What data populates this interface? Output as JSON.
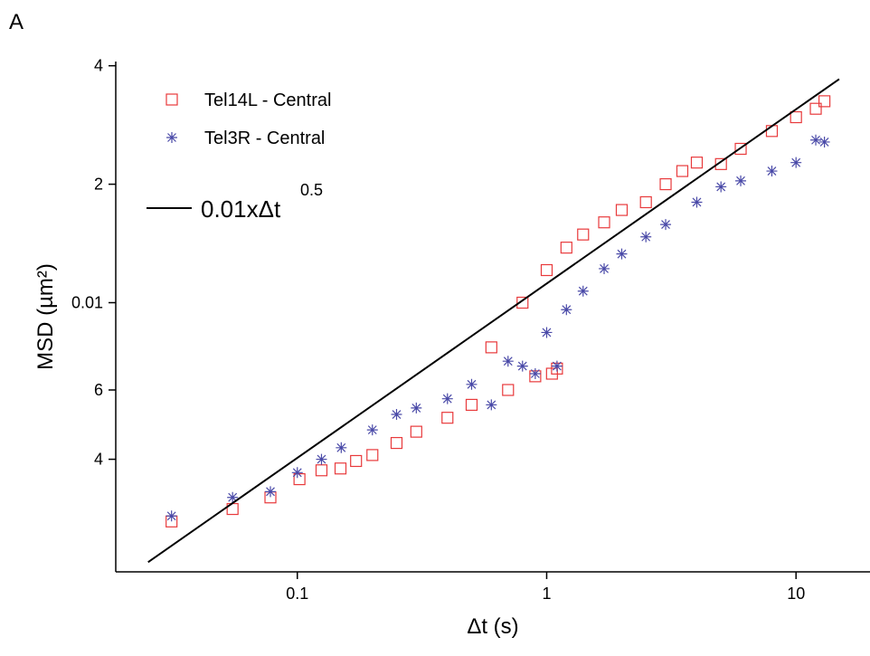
{
  "chart_data": {
    "type": "scatter",
    "panel_label": "A",
    "xlabel": "Δt (s)",
    "ylabel": "MSD (µm²)",
    "xscale": "log",
    "yscale": "log",
    "xlim": [
      0.0187,
      19.8
    ],
    "ylim": [
      0.00207,
      0.041
    ],
    "xticks": [
      0.1,
      1,
      10
    ],
    "yticks": [
      {
        "value": 0.04,
        "label": "4"
      },
      {
        "value": 0.02,
        "label": "2"
      },
      0.01,
      {
        "value": 0.006,
        "label": "6"
      },
      {
        "value": 0.004,
        "label": "4"
      }
    ],
    "legend": "upper left",
    "series": [
      {
        "name": "Tel14L - Central",
        "color": "#e8393b",
        "marker": "square",
        "x": [
          0.0313,
          0.055,
          0.078,
          0.102,
          0.125,
          0.149,
          0.172,
          0.2,
          0.25,
          0.3,
          0.4,
          0.5,
          0.6,
          0.7,
          0.8,
          0.9,
          1.0,
          1.05,
          1.1,
          1.2,
          1.4,
          1.7,
          2.0,
          2.5,
          3,
          3.5,
          4,
          5,
          6,
          8,
          10,
          12,
          13
        ],
        "values": [
          0.00278,
          0.00299,
          0.0032,
          0.00356,
          0.00375,
          0.00379,
          0.00396,
          0.0041,
          0.0044,
          0.0047,
          0.0051,
          0.0055,
          0.0077,
          0.006,
          0.01,
          0.0065,
          0.0121,
          0.0066,
          0.0068,
          0.0138,
          0.0149,
          0.016,
          0.0172,
          0.018,
          0.02,
          0.0216,
          0.0227,
          0.0225,
          0.0246,
          0.0273,
          0.0296,
          0.0311,
          0.0325
        ]
      },
      {
        "name": "Tel3R - Central",
        "color": "#4a4aa8",
        "marker": "asterisk",
        "x": [
          0.0313,
          0.055,
          0.078,
          0.1,
          0.125,
          0.15,
          0.2,
          0.25,
          0.3,
          0.4,
          0.5,
          0.6,
          0.7,
          0.8,
          0.9,
          1.0,
          1.1,
          1.2,
          1.4,
          1.7,
          2,
          2.5,
          3,
          4,
          5,
          6,
          8,
          10,
          12,
          13
        ],
        "values": [
          0.00287,
          0.0032,
          0.00331,
          0.0037,
          0.004,
          0.00428,
          0.00475,
          0.0052,
          0.0054,
          0.0057,
          0.0062,
          0.0055,
          0.0071,
          0.0069,
          0.0066,
          0.0084,
          0.0069,
          0.0096,
          0.0107,
          0.0122,
          0.0133,
          0.0147,
          0.0158,
          0.018,
          0.0197,
          0.0204,
          0.0216,
          0.0227,
          0.0259,
          0.0256
        ]
      },
      {
        "name": "0.01xΔt",
        "exponent": "0.5",
        "color": "#000000",
        "marker": "line",
        "x": [
          0.0252,
          14.9
        ],
        "values": [
          0.00219,
          0.037
        ]
      }
    ]
  }
}
